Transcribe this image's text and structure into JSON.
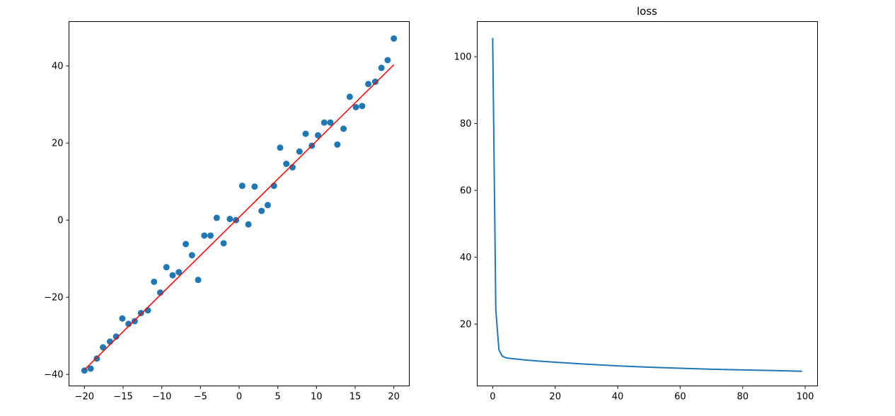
{
  "chart_data": [
    {
      "type": "scatter",
      "title": "",
      "xlabel": "",
      "ylabel": "",
      "xlim": [
        -22,
        22
      ],
      "ylim": [
        -43,
        51.5
      ],
      "grid": false,
      "xticks": [
        "−20",
        "−15",
        "−10",
        "−5",
        "0",
        "5",
        "10",
        "15",
        "20"
      ],
      "xtick_values": [
        -20,
        -15,
        -10,
        -5,
        0,
        5,
        10,
        15,
        20
      ],
      "yticks": [
        "−40",
        "−20",
        "0",
        "20",
        "40"
      ],
      "ytick_values": [
        -40,
        -20,
        0,
        20,
        40
      ],
      "points": {
        "color": "#1f77b4",
        "x": [
          -20,
          -19.2,
          -18.4,
          -17.6,
          -16.7,
          -15.9,
          -15.1,
          -14.3,
          -13.5,
          -12.7,
          -11.8,
          -11,
          -10.2,
          -9.4,
          -8.6,
          -7.8,
          -6.9,
          -6.1,
          -5.3,
          -4.5,
          -3.7,
          -2.9,
          -2,
          -1.2,
          -0.4,
          0.4,
          1.2,
          2,
          2.9,
          3.7,
          4.5,
          5.3,
          6.1,
          6.9,
          7.8,
          8.6,
          9.4,
          10.2,
          11,
          11.8,
          12.7,
          13.5,
          14.3,
          15.1,
          15.9,
          16.7,
          17.6,
          18.4,
          19.2,
          20
        ],
        "y": [
          -39,
          -38.5,
          -35.9,
          -33,
          -31.5,
          -30.2,
          -25.5,
          -26.9,
          -26.2,
          -24.1,
          -23.4,
          -16,
          -18.8,
          -12.2,
          -14.3,
          -13.5,
          -6.2,
          -9.1,
          -15.5,
          -4,
          -4,
          0.6,
          -6,
          0.3,
          0,
          8.9,
          -1.1,
          8.7,
          2.4,
          3.9,
          8.9,
          18.8,
          14.6,
          13.7,
          17.8,
          22.4,
          19.3,
          22,
          25.3,
          25.3,
          19.6,
          23.7,
          32,
          29.3,
          29.6,
          35.3,
          35.9,
          39.5,
          41.5,
          47.1
        ]
      },
      "fit_line": {
        "color": "#ff0000",
        "x": [
          -20,
          20
        ],
        "y": [
          -38.8,
          40.3
        ]
      }
    },
    {
      "type": "line",
      "title": "loss",
      "xlabel": "",
      "ylabel": "",
      "xlim": [
        -4.95,
        103.95
      ],
      "ylim": [
        1.5,
        110.5
      ],
      "grid": false,
      "xticks": [
        "0",
        "20",
        "40",
        "60",
        "80",
        "100"
      ],
      "xtick_values": [
        0,
        20,
        40,
        60,
        80,
        100
      ],
      "yticks": [
        "20",
        "40",
        "60",
        "80",
        "100"
      ],
      "ytick_values": [
        20,
        40,
        60,
        80,
        100
      ],
      "series": [
        {
          "color": "#1f77b4",
          "x": [
            0,
            1,
            2,
            3,
            4,
            5,
            7,
            10,
            15,
            20,
            30,
            40,
            50,
            60,
            70,
            80,
            90,
            99
          ],
          "y": [
            105.6,
            24.3,
            12.3,
            10.5,
            10.0,
            9.8,
            9.6,
            9.3,
            8.9,
            8.6,
            8.0,
            7.5,
            7.1,
            6.8,
            6.5,
            6.3,
            6.1,
            5.9
          ]
        }
      ]
    }
  ]
}
